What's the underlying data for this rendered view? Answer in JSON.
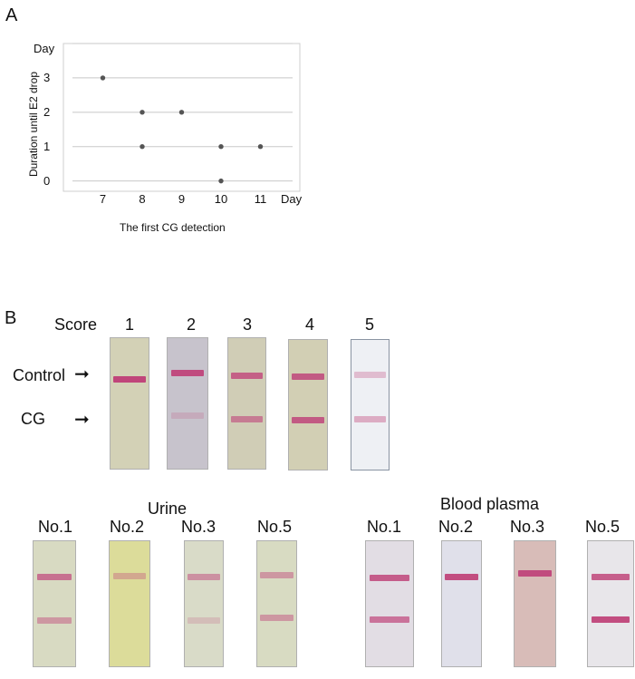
{
  "panel_a": {
    "letter": "A",
    "chart_data": {
      "type": "scatter",
      "x_axis": {
        "label": "The first CG detection",
        "unit_label": "Day",
        "ticks": [
          7,
          8,
          9,
          10,
          11
        ],
        "range": [
          6,
          12
        ]
      },
      "y_axis": {
        "label": "Duration until E2 drop",
        "unit_label": "Day",
        "ticks": [
          0,
          1,
          2,
          3
        ],
        "range": [
          -0.3,
          4
        ]
      },
      "points": [
        {
          "x": 7,
          "y": 3
        },
        {
          "x": 8,
          "y": 2
        },
        {
          "x": 9,
          "y": 2
        },
        {
          "x": 8,
          "y": 1
        },
        {
          "x": 10,
          "y": 1
        },
        {
          "x": 11,
          "y": 1
        },
        {
          "x": 10,
          "y": 0
        }
      ],
      "grid": "horizontal",
      "point_color": "#555555",
      "grid_color": "#c8c8c8"
    }
  },
  "panel_b": {
    "letter": "B",
    "score_label": "Score",
    "scores": [
      "1",
      "2",
      "3",
      "4",
      "5"
    ],
    "control_label": "Control",
    "cg_label": "CG",
    "urine_title": "Urine",
    "plasma_title": "Blood plasma",
    "urine_samples": [
      "No.1",
      "No.2",
      "No.3",
      "No.5"
    ],
    "plasma_samples": [
      "No.1",
      "No.2",
      "No.3",
      "No.5"
    ],
    "band_color": "#c0457a",
    "strip_colors": {
      "score": [
        "#d3d1b6",
        "#c7c3cc",
        "#d0cdb6",
        "#d2cfb4",
        "#eef0f4"
      ],
      "urine": [
        "#d8dac2",
        "#dcdc9a",
        "#d9dbc8",
        "#d8dbc2"
      ],
      "plasma": [
        "#e2dde4",
        "#e0e0ea",
        "#d8bcb8",
        "#e8e6ea"
      ]
    }
  }
}
